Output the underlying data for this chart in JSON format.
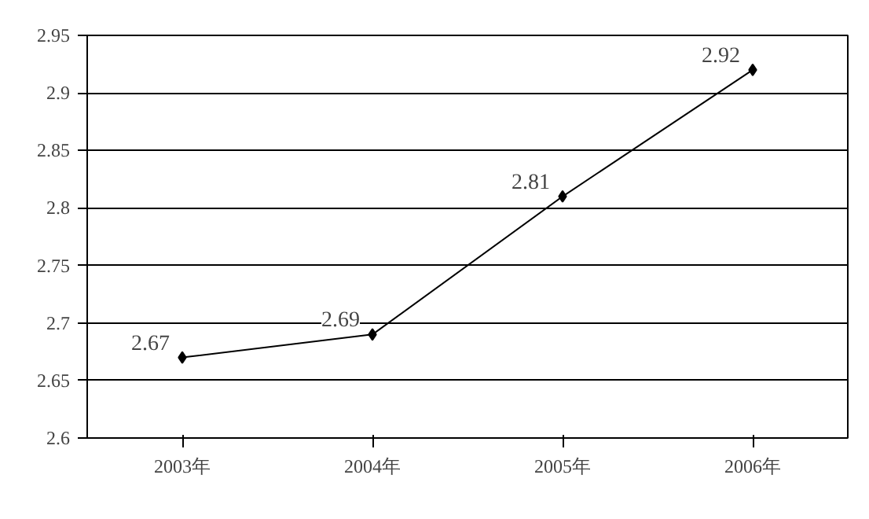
{
  "chart_data": {
    "type": "line",
    "categories": [
      "2003年",
      "2004年",
      "2005年",
      "2006年"
    ],
    "series": [
      {
        "color": "#000000",
        "values": [
          2.67,
          2.69,
          2.81,
          2.92
        ]
      }
    ],
    "ylim": [
      2.6,
      2.95
    ],
    "yticks": [
      2.6,
      2.65,
      2.7,
      2.75,
      2.8,
      2.85,
      2.9,
      2.95
    ],
    "grid": "y",
    "marker": "diamond",
    "line_style": "solid",
    "data_labels": true
  }
}
